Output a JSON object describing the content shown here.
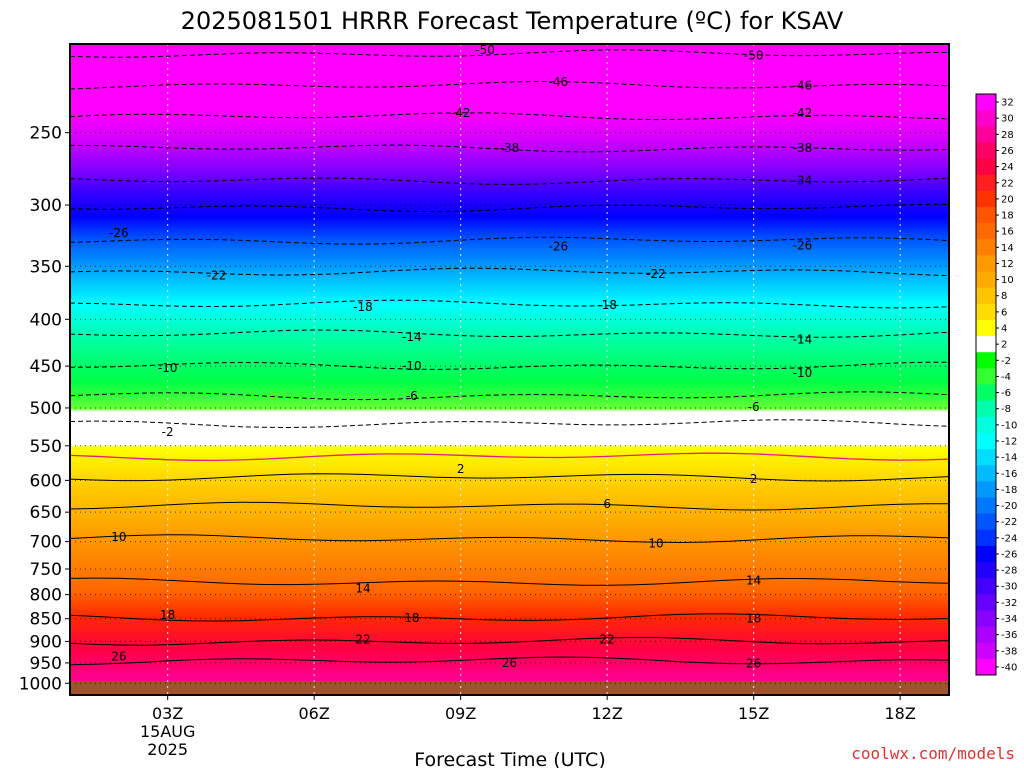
{
  "title": "2025081501 HRRR Forecast Temperature (ºC) for KSAV",
  "credit": "coolwx.com/models",
  "colors": {
    "credit": "#dd3333",
    "ground": "#a0522d",
    "freezing_line": "#e0207a"
  },
  "chart_data": {
    "type": "heatmap",
    "title": "2025081501 HRRR Forecast Temperature (ºC) for KSAV",
    "xlabel": "Forecast Time (UTC)",
    "ylabel": "",
    "x_range_hours_after_00Z_15AUG": [
      1,
      19
    ],
    "ylim": [
      1030,
      200
    ],
    "y_scale": "log-pressure",
    "grid": true,
    "x_ticks": [
      {
        "hour": 3,
        "label": "03Z",
        "sub": [
          "15AUG",
          "2025"
        ]
      },
      {
        "hour": 6,
        "label": "06Z",
        "sub": []
      },
      {
        "hour": 9,
        "label": "09Z",
        "sub": []
      },
      {
        "hour": 12,
        "label": "12Z",
        "sub": []
      },
      {
        "hour": 15,
        "label": "15Z",
        "sub": []
      },
      {
        "hour": 18,
        "label": "18Z",
        "sub": []
      }
    ],
    "y_ticks": [
      "250",
      "300",
      "350",
      "400",
      "450",
      "500",
      "550",
      "600",
      "650",
      "700",
      "750",
      "800",
      "850",
      "900",
      "950",
      "1000"
    ],
    "colorbar": {
      "labels": [
        "32",
        "30",
        "28",
        "26",
        "24",
        "22",
        "20",
        "18",
        "16",
        "14",
        "12",
        "10",
        "8",
        "6",
        "4",
        "2",
        "-2",
        "-4",
        "-6",
        "-8",
        "-10",
        "-12",
        "-14",
        "-16",
        "-18",
        "-20",
        "-22",
        "-24",
        "-26",
        "-28",
        "-30",
        "-32",
        "-34",
        "-36",
        "-38",
        "-40"
      ],
      "colors": [
        "#ff00ff",
        "#ff00cc",
        "#ff0099",
        "#ff0066",
        "#ff0044",
        "#ff1f1f",
        "#ff3300",
        "#ff5500",
        "#ff6a00",
        "#ff8000",
        "#ff9900",
        "#ffaa00",
        "#ffc400",
        "#ffdd00",
        "#ffff00",
        "#ffffff",
        "#00ff00",
        "#33ff33",
        "#00ff66",
        "#00ffaa",
        "#00ffdd",
        "#00ffff",
        "#00ddff",
        "#00bbff",
        "#0099ff",
        "#0077ff",
        "#0055ff",
        "#0033ff",
        "#0000ff",
        "#2200ff",
        "#4400ff",
        "#6600ff",
        "#8800ff",
        "#aa00ff",
        "#cc00ff",
        "#ff00ff"
      ]
    },
    "isotherm_levels_hPa": [
      {
        "label": "-50",
        "p": 205,
        "dashed": true
      },
      {
        "label": "-46",
        "p": 222,
        "dashed": true
      },
      {
        "label": "-42",
        "p": 240,
        "dashed": true
      },
      {
        "label": "-38",
        "p": 260,
        "dashed": true
      },
      {
        "label": "-34",
        "p": 282,
        "dashed": true
      },
      {
        "label": "-30",
        "p": 302,
        "dashed": true
      },
      {
        "label": "-26",
        "p": 328,
        "dashed": true
      },
      {
        "label": "-22",
        "p": 355,
        "dashed": true
      },
      {
        "label": "-18",
        "p": 385,
        "dashed": true
      },
      {
        "label": "-14",
        "p": 415,
        "dashed": true
      },
      {
        "label": "-10",
        "p": 450,
        "dashed": true
      },
      {
        "label": "-6",
        "p": 485,
        "dashed": true
      },
      {
        "label": "-2",
        "p": 520,
        "dashed": true
      },
      {
        "label": "0",
        "p": 565,
        "dashed": false
      },
      {
        "label": "2",
        "p": 595,
        "dashed": false
      },
      {
        "label": "6",
        "p": 640,
        "dashed": false
      },
      {
        "label": "10",
        "p": 695,
        "dashed": false
      },
      {
        "label": "14",
        "p": 775,
        "dashed": false
      },
      {
        "label": "18",
        "p": 848,
        "dashed": false
      },
      {
        "label": "22",
        "p": 900,
        "dashed": false
      },
      {
        "label": "26",
        "p": 945,
        "dashed": false
      }
    ],
    "contour_labels": [
      {
        "text": "-50",
        "hour": 9.5,
        "p": 203
      },
      {
        "text": "-50",
        "hour": 15,
        "p": 206
      },
      {
        "text": "-46",
        "hour": 11,
        "p": 220
      },
      {
        "text": "-46",
        "hour": 16,
        "p": 222
      },
      {
        "text": "-42",
        "hour": 9,
        "p": 238
      },
      {
        "text": "-42",
        "hour": 16,
        "p": 238
      },
      {
        "text": "-38",
        "hour": 10,
        "p": 260
      },
      {
        "text": "-38",
        "hour": 16,
        "p": 260
      },
      {
        "text": "-34",
        "hour": 16,
        "p": 282
      },
      {
        "text": "-26",
        "hour": 2,
        "p": 322
      },
      {
        "text": "-26",
        "hour": 11,
        "p": 333
      },
      {
        "text": "-26",
        "hour": 16,
        "p": 332
      },
      {
        "text": "-22",
        "hour": 4,
        "p": 358
      },
      {
        "text": "-22",
        "hour": 13,
        "p": 357
      },
      {
        "text": "-18",
        "hour": 7,
        "p": 388
      },
      {
        "text": "-18",
        "hour": 12,
        "p": 386
      },
      {
        "text": "-14",
        "hour": 8,
        "p": 418
      },
      {
        "text": "-14",
        "hour": 16,
        "p": 421
      },
      {
        "text": "-10",
        "hour": 3,
        "p": 452
      },
      {
        "text": "-10",
        "hour": 8,
        "p": 450
      },
      {
        "text": "-10",
        "hour": 16,
        "p": 458
      },
      {
        "text": "-6",
        "hour": 8,
        "p": 485
      },
      {
        "text": "-6",
        "hour": 15,
        "p": 499
      },
      {
        "text": "-2",
        "hour": 3,
        "p": 531
      },
      {
        "text": "2",
        "hour": 9,
        "p": 583
      },
      {
        "text": "2",
        "hour": 15,
        "p": 598
      },
      {
        "text": "6",
        "hour": 12,
        "p": 637
      },
      {
        "text": "10",
        "hour": 2,
        "p": 692
      },
      {
        "text": "10",
        "hour": 13,
        "p": 703
      },
      {
        "text": "14",
        "hour": 7,
        "p": 788
      },
      {
        "text": "14",
        "hour": 15,
        "p": 772
      },
      {
        "text": "18",
        "hour": 3,
        "p": 842
      },
      {
        "text": "18",
        "hour": 8,
        "p": 848
      },
      {
        "text": "18",
        "hour": 15,
        "p": 850
      },
      {
        "text": "22",
        "hour": 7,
        "p": 896
      },
      {
        "text": "22",
        "hour": 12,
        "p": 896
      },
      {
        "text": "26",
        "hour": 2,
        "p": 935
      },
      {
        "text": "26",
        "hour": 10,
        "p": 950
      },
      {
        "text": "26",
        "hour": 15,
        "p": 952
      }
    ]
  }
}
